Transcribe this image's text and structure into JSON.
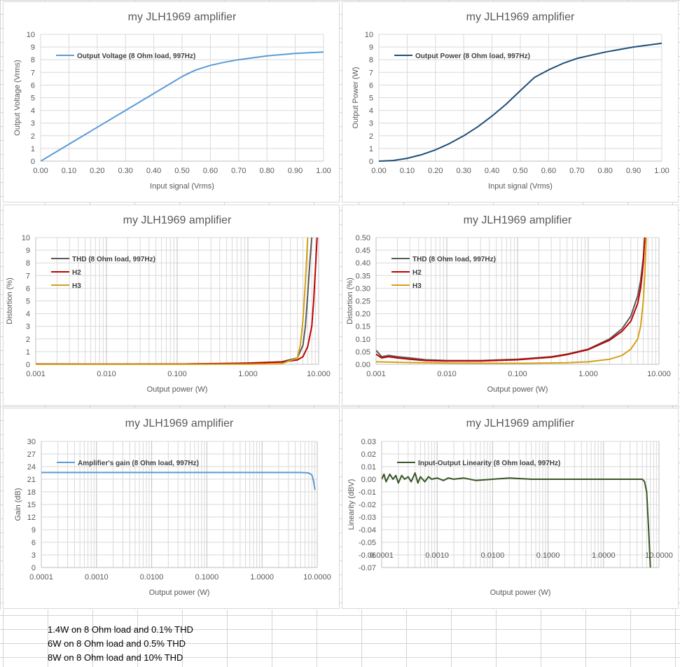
{
  "chart_data": [
    {
      "type": "line",
      "title": "my JLH1969 amplifier",
      "xlabel": "Input signal (Vrms)",
      "ylabel": "Output Voltage (Vrms)",
      "xscale": "linear",
      "xlim": [
        0,
        1
      ],
      "ylim": [
        0,
        10
      ],
      "xticks": [
        0,
        0.1,
        0.2,
        0.3,
        0.4,
        0.5,
        0.6,
        0.7,
        0.8,
        0.9,
        1.0
      ],
      "xtick_labels": [
        "0.00",
        "0.10",
        "0.20",
        "0.30",
        "0.40",
        "0.50",
        "0.60",
        "0.70",
        "0.80",
        "0.90",
        "1.00"
      ],
      "yticks": [
        0,
        1,
        2,
        3,
        4,
        5,
        6,
        7,
        8,
        9,
        10
      ],
      "ytick_labels": [
        "0",
        "1",
        "2",
        "3",
        "4",
        "5",
        "6",
        "7",
        "8",
        "9",
        "10"
      ],
      "grid": true,
      "legend": "top-left",
      "series": [
        {
          "name": "Output Voltage (8 Ohm load, 997Hz)",
          "color": "#5b9bd5",
          "x": [
            0,
            0.1,
            0.2,
            0.3,
            0.4,
            0.5,
            0.53,
            0.55,
            0.6,
            0.65,
            0.7,
            0.8,
            0.9,
            1.0
          ],
          "y": [
            0,
            1.33,
            2.67,
            4.0,
            5.33,
            6.67,
            7.0,
            7.2,
            7.55,
            7.8,
            8.0,
            8.3,
            8.5,
            8.6
          ]
        }
      ]
    },
    {
      "type": "line",
      "title": "my JLH1969 amplifier",
      "xlabel": "Input signal (Vrms)",
      "ylabel": "Output Power (W)",
      "xscale": "linear",
      "xlim": [
        0,
        1
      ],
      "ylim": [
        0,
        10
      ],
      "xticks": [
        0,
        0.1,
        0.2,
        0.3,
        0.4,
        0.5,
        0.6,
        0.7,
        0.8,
        0.9,
        1.0
      ],
      "xtick_labels": [
        "0.00",
        "0.10",
        "0.20",
        "0.30",
        "0.40",
        "0.50",
        "0.60",
        "0.70",
        "0.80",
        "0.90",
        "1.00"
      ],
      "yticks": [
        0,
        1,
        2,
        3,
        4,
        5,
        6,
        7,
        8,
        9,
        10
      ],
      "ytick_labels": [
        "0",
        "1",
        "2",
        "3",
        "4",
        "5",
        "6",
        "7",
        "8",
        "9",
        "10"
      ],
      "grid": true,
      "legend": "top-left",
      "series": [
        {
          "name": "Output Power (8 Ohm load, 997Hz)",
          "color": "#1f4e79",
          "x": [
            0,
            0.05,
            0.1,
            0.15,
            0.2,
            0.25,
            0.3,
            0.35,
            0.4,
            0.45,
            0.5,
            0.55,
            0.6,
            0.65,
            0.7,
            0.8,
            0.9,
            1.0
          ],
          "y": [
            0,
            0.05,
            0.22,
            0.5,
            0.89,
            1.39,
            2.0,
            2.72,
            3.56,
            4.5,
            5.56,
            6.6,
            7.2,
            7.7,
            8.1,
            8.6,
            9.0,
            9.3
          ]
        }
      ]
    },
    {
      "type": "line",
      "title": "my JLH1969 amplifier",
      "xlabel": "Output power (W)",
      "ylabel": "Distortion (%)",
      "xscale": "log",
      "xlim": [
        0.001,
        10
      ],
      "ylim": [
        0,
        10
      ],
      "xticks": [
        0.001,
        0.01,
        0.1,
        1,
        10
      ],
      "xtick_labels": [
        "0.001",
        "0.010",
        "0.100",
        "1.000",
        "10.000"
      ],
      "yticks": [
        0,
        1,
        2,
        3,
        4,
        5,
        6,
        7,
        8,
        9,
        10
      ],
      "ytick_labels": [
        "0",
        "1",
        "2",
        "3",
        "4",
        "5",
        "6",
        "7",
        "8",
        "9",
        "10"
      ],
      "grid": true,
      "legend": "top-left",
      "series": [
        {
          "name": "THD (8 Ohm load, 997Hz)",
          "color": "#595959",
          "x": [
            0.001,
            0.01,
            0.1,
            1,
            3,
            5,
            6,
            6.5,
            7,
            7.5,
            8
          ],
          "y": [
            0.02,
            0.01,
            0.02,
            0.1,
            0.2,
            0.5,
            1.5,
            3,
            5.5,
            8,
            10
          ]
        },
        {
          "name": "H2",
          "color": "#c00000",
          "x": [
            0.001,
            0.01,
            0.1,
            0.5,
            1,
            3,
            5,
            6,
            7,
            8,
            8.5,
            9,
            9.5
          ],
          "y": [
            0.02,
            0.01,
            0.02,
            0.06,
            0.1,
            0.18,
            0.35,
            0.6,
            1.4,
            3,
            5,
            7.5,
            10
          ]
        },
        {
          "name": "H3",
          "color": "#d4a017",
          "x": [
            0.001,
            0.01,
            0.1,
            1,
            3,
            5,
            5.5,
            6,
            6.5,
            7
          ],
          "y": [
            0.0,
            0.0,
            0.0,
            0.01,
            0.05,
            0.5,
            1.5,
            3.5,
            6.5,
            10
          ]
        }
      ]
    },
    {
      "type": "line",
      "title": "my JLH1969 amplifier",
      "xlabel": "Output power (W)",
      "ylabel": "Distortion (%)",
      "xscale": "log",
      "xlim": [
        0.001,
        10
      ],
      "ylim": [
        0,
        0.5
      ],
      "xticks": [
        0.001,
        0.01,
        0.1,
        1,
        10
      ],
      "xtick_labels": [
        "0.001",
        "0.010",
        "0.100",
        "1.000",
        "10.000"
      ],
      "yticks": [
        0,
        0.05,
        0.1,
        0.15,
        0.2,
        0.25,
        0.3,
        0.35,
        0.4,
        0.45,
        0.5
      ],
      "ytick_labels": [
        "0.00",
        "0.05",
        "0.10",
        "0.15",
        "0.20",
        "0.25",
        "0.30",
        "0.35",
        "0.40",
        "0.45",
        "0.50"
      ],
      "grid": true,
      "legend": "top-left",
      "series": [
        {
          "name": "THD (8 Ohm load, 997Hz)",
          "color": "#595959",
          "x": [
            0.001,
            0.0012,
            0.0015,
            0.002,
            0.003,
            0.005,
            0.01,
            0.03,
            0.1,
            0.3,
            0.5,
            1,
            2,
            3,
            4,
            5,
            5.5,
            6,
            6.3
          ],
          "y": [
            0.055,
            0.03,
            0.035,
            0.03,
            0.025,
            0.018,
            0.015,
            0.015,
            0.02,
            0.03,
            0.04,
            0.06,
            0.1,
            0.14,
            0.19,
            0.27,
            0.33,
            0.42,
            0.5
          ]
        },
        {
          "name": "H2",
          "color": "#c00000",
          "x": [
            0.001,
            0.0012,
            0.0015,
            0.002,
            0.003,
            0.005,
            0.01,
            0.03,
            0.1,
            0.3,
            0.5,
            1,
            2,
            3,
            4,
            5,
            5.5,
            6,
            6.3
          ],
          "y": [
            0.04,
            0.025,
            0.03,
            0.025,
            0.02,
            0.015,
            0.013,
            0.013,
            0.018,
            0.028,
            0.038,
            0.058,
            0.095,
            0.13,
            0.17,
            0.24,
            0.3,
            0.4,
            0.5
          ]
        },
        {
          "name": "H3",
          "color": "#d4a017",
          "x": [
            0.001,
            0.003,
            0.01,
            0.1,
            0.5,
            1,
            2,
            3,
            4,
            5,
            5.5,
            6,
            6.3,
            6.6
          ],
          "y": [
            0.01,
            0.007,
            0.005,
            0.004,
            0.006,
            0.01,
            0.02,
            0.035,
            0.06,
            0.1,
            0.15,
            0.25,
            0.35,
            0.5
          ]
        }
      ]
    },
    {
      "type": "line",
      "title": "my JLH1969 amplifier",
      "xlabel": "Output power (W)",
      "ylabel": "Gain (dB)",
      "xscale": "log",
      "xlim": [
        0.0001,
        10
      ],
      "ylim": [
        0,
        30
      ],
      "xticks": [
        0.0001,
        0.001,
        0.01,
        0.1,
        1,
        10
      ],
      "xtick_labels": [
        "0.0001",
        "0.0010",
        "0.0100",
        "0.1000",
        "1.0000",
        "10.0000"
      ],
      "yticks": [
        0,
        3,
        6,
        9,
        12,
        15,
        18,
        21,
        24,
        27,
        30
      ],
      "ytick_labels": [
        "0",
        "3",
        "6",
        "9",
        "12",
        "15",
        "18",
        "21",
        "24",
        "27",
        "30"
      ],
      "grid": true,
      "legend": "top-left",
      "series": [
        {
          "name": "Amplifier's gain (8 Ohm load, 997Hz)",
          "color": "#5b9bd5",
          "x": [
            0.0001,
            0.001,
            0.01,
            0.1,
            1,
            5,
            7,
            8,
            8.6,
            9.1
          ],
          "y": [
            22.6,
            22.6,
            22.6,
            22.6,
            22.6,
            22.6,
            22.5,
            22.0,
            20.5,
            18.5
          ]
        }
      ]
    },
    {
      "type": "line",
      "title": "my JLH1969 amplifier",
      "xlabel": "Output power (W)",
      "ylabel": "Linearity (dBV)",
      "xscale": "log",
      "xlim": [
        0.0001,
        10
      ],
      "ylim": [
        -0.07,
        0.03
      ],
      "xticks": [
        0.0001,
        0.001,
        0.01,
        0.1,
        1,
        10
      ],
      "xtick_labels": [
        "0.0001",
        "0.0010",
        "0.0100",
        "0.1000",
        "1.0000",
        "10.0000"
      ],
      "yticks": [
        -0.07,
        -0.06,
        -0.05,
        -0.04,
        -0.03,
        -0.02,
        -0.01,
        0,
        0.01,
        0.02,
        0.03
      ],
      "ytick_labels": [
        "-0.07",
        "-0.06",
        "-0.05",
        "-0.04",
        "-0.03",
        "-0.02",
        "-0.01",
        "0.00",
        "0.01",
        "0.02",
        "0.03"
      ],
      "grid": true,
      "legend": "top-left",
      "series": [
        {
          "name": "Input-Output Linearity (8 Ohm load, 997Hz)",
          "color": "#375623",
          "x": [
            0.0001,
            0.00011,
            0.00012,
            0.00014,
            0.00016,
            0.00018,
            0.0002,
            0.00023,
            0.00026,
            0.0003,
            0.00034,
            0.0004,
            0.00045,
            0.0005,
            0.0006,
            0.0007,
            0.0008,
            0.001,
            0.0013,
            0.0016,
            0.002,
            0.003,
            0.005,
            0.01,
            0.02,
            0.05,
            0.1,
            0.2,
            0.5,
            1,
            2,
            3,
            4,
            5,
            5.5,
            6,
            6.5,
            7
          ],
          "y": [
            0.0,
            0.004,
            -0.002,
            0.004,
            0.0,
            0.003,
            -0.003,
            0.003,
            0.0,
            0.002,
            -0.002,
            0.005,
            -0.003,
            0.002,
            -0.002,
            0.002,
            0.0,
            0.001,
            -0.001,
            0.001,
            0.0,
            0.001,
            -0.001,
            0.0,
            0.001,
            0.0,
            0.0,
            0.0,
            0.0,
            0.0,
            0.0,
            0.0,
            0.0,
            0.0,
            -0.002,
            -0.01,
            -0.04,
            -0.07
          ]
        }
      ]
    }
  ],
  "notes": [
    "1.4W on 8 Ohm load and 0.1% THD",
    "6W on 8 Ohm load and 0.5% THD",
    "8W on 8 Ohm load and 10% THD"
  ],
  "colors": {
    "gridline": "#d9d9d9",
    "axis_text": "#595959"
  }
}
